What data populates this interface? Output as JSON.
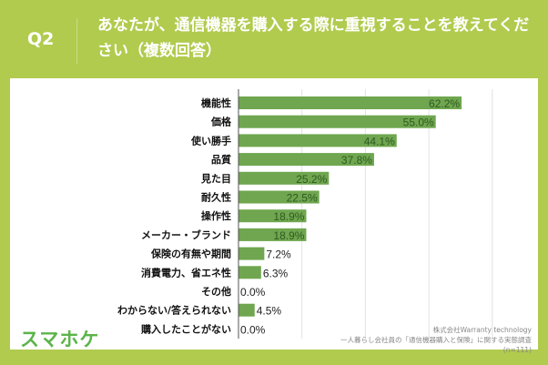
{
  "header": {
    "q": "Q2",
    "title": "あなたが、通信機器を購入する際に重視することを教えてください（複数回答）"
  },
  "logo": "スマホケ",
  "source": {
    "company": "株式会社Warranty technology",
    "survey": "一人暮らし会社員の「通信機器購入と保険」に関する実態調査",
    "n": "(n=111)"
  },
  "colors": {
    "header": "#b1cb4e",
    "bar": "#6fa64f",
    "label": "#2f5a22"
  },
  "chart_data": {
    "type": "bar",
    "orientation": "horizontal",
    "grid": true,
    "xlim": [
      0,
      80
    ],
    "categories": [
      "機能性",
      "価格",
      "使い勝手",
      "品質",
      "見た目",
      "耐久性",
      "操作性",
      "メーカー・ブランド",
      "保険の有無や期間",
      "消費電力、省エネ性",
      "その他",
      "わからない/答えられない",
      "購入したことがない"
    ],
    "values": [
      62.2,
      55.0,
      44.1,
      37.8,
      25.2,
      22.5,
      18.9,
      18.9,
      7.2,
      6.3,
      0.0,
      4.5,
      0.0
    ],
    "labels": [
      "62.2%",
      "55.0%",
      "44.1%",
      "37.8%",
      "25.2%",
      "22.5%",
      "18.9%",
      "18.9%",
      "7.2%",
      "6.3%",
      "0.0%",
      "4.5%",
      "0.0%"
    ]
  }
}
